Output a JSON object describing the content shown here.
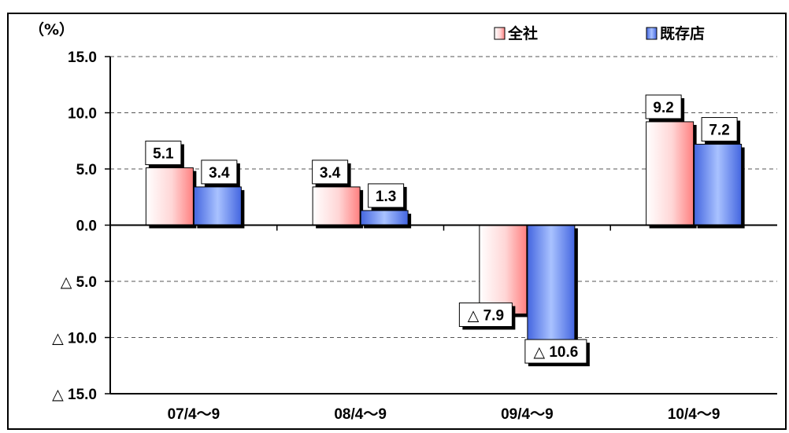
{
  "chart_data": {
    "type": "bar",
    "unit_label": "（%）",
    "categories": [
      "07/4～9",
      "08/4～9",
      "09/4～9",
      "10/4～9"
    ],
    "series": [
      {
        "name": "全社",
        "values": [
          5.1,
          3.4,
          -7.9,
          9.2
        ],
        "labels": [
          "5.1",
          "3.4",
          "△ 7.9",
          "9.2"
        ],
        "color": "#ff9999"
      },
      {
        "name": "既存店",
        "values": [
          3.4,
          1.3,
          -10.6,
          7.2
        ],
        "labels": [
          "3.4",
          "1.3",
          "△ 10.6",
          "7.2"
        ],
        "color": "#6a8ff0"
      }
    ],
    "yticks": [
      15,
      10,
      5,
      0,
      -5,
      -10,
      -15
    ],
    "ytick_labels": [
      "15.0",
      "10.0",
      "5.0",
      "0.0",
      "△ 5.0",
      "△ 10.0",
      "△ 15.0"
    ],
    "ylim": [
      -15,
      15
    ],
    "grid": "dashed",
    "legend_position": "top-right"
  }
}
